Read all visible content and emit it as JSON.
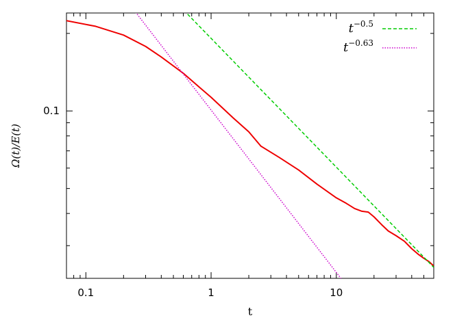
{
  "chart_data": {
    "type": "line",
    "title": "",
    "xlabel": "t",
    "ylabel": "Ω(t)/E(t)",
    "xscale": "log",
    "yscale": "log",
    "xlim": [
      0.07,
      60
    ],
    "ylim": [
      0.0224,
      0.24
    ],
    "xticks": [
      {
        "value": 0.1,
        "label": "0.1"
      },
      {
        "value": 1,
        "label": "1"
      },
      {
        "value": 10,
        "label": "10"
      }
    ],
    "yticks": [
      {
        "value": 0.1,
        "label": "0.1"
      }
    ],
    "grid": false,
    "legend_position": "top-right",
    "series": [
      {
        "name": "",
        "color": "#ee0000",
        "style": "solid",
        "x": [
          0.07,
          0.12,
          0.2,
          0.3,
          0.4,
          0.6,
          0.8,
          1.0,
          1.5,
          2.0,
          2.5,
          3.5,
          5.0,
          7.0,
          10.0,
          12.0,
          14.0,
          16.0,
          18.0,
          20.0,
          23.0,
          26.0,
          30.0,
          35.0,
          40.0,
          45.0,
          50.0,
          55.0,
          60.0
        ],
        "y": [
          0.224,
          0.213,
          0.197,
          0.178,
          0.162,
          0.14,
          0.124,
          0.113,
          0.094,
          0.083,
          0.073,
          0.066,
          0.059,
          0.052,
          0.046,
          0.0438,
          0.0418,
          0.0408,
          0.0405,
          0.0388,
          0.0362,
          0.0342,
          0.0328,
          0.0312,
          0.0292,
          0.0278,
          0.0268,
          0.026,
          0.025
        ]
      },
      {
        "name_base": "t",
        "name_exp": "−0.5",
        "color": "#00cc00",
        "style": "dashed",
        "x": [
          0.3,
          60.0
        ],
        "y": [
          0.3493,
          0.02471
        ]
      },
      {
        "name_base": "t",
        "name_exp": "−0.63",
        "color": "#cc00cc",
        "style": "dotted",
        "x": [
          0.25,
          20.0
        ],
        "y": [
          0.2415,
          0.01526
        ]
      }
    ]
  }
}
